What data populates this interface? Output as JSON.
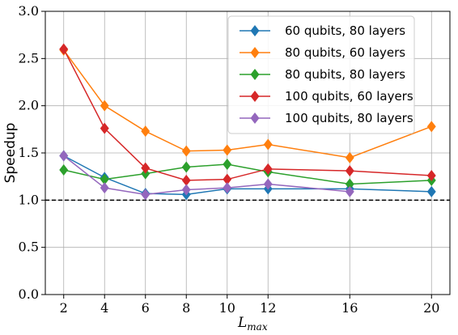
{
  "chart_data": {
    "type": "line",
    "title": "",
    "xlabel": "L",
    "xlabel_sub": "max",
    "ylabel": "Speedup",
    "xlim": [
      1.1,
      20.9
    ],
    "ylim": [
      0.0,
      3.0
    ],
    "x_ticks": [
      2,
      4,
      6,
      8,
      10,
      12,
      16,
      20
    ],
    "x_tick_labels": [
      "2",
      "4",
      "6",
      "8",
      "10",
      "12",
      "16",
      "20"
    ],
    "y_ticks": [
      0.0,
      0.5,
      1.0,
      1.5,
      2.0,
      2.5,
      3.0
    ],
    "y_tick_labels": [
      "0.0",
      "0.5",
      "1.0",
      "1.5",
      "2.0",
      "2.5",
      "3.0"
    ],
    "grid": true,
    "legend_position": "top-right",
    "reference_line": {
      "y": 1.0,
      "style": "dashed",
      "color": "#000000"
    },
    "x": [
      2,
      4,
      6,
      8,
      10,
      12,
      16,
      20
    ],
    "series": [
      {
        "name": "60 qubits, 80 layers",
        "color": "#1f77b4",
        "marker": "diamond",
        "values": [
          1.47,
          1.24,
          1.07,
          1.06,
          1.12,
          1.12,
          1.12,
          1.09
        ]
      },
      {
        "name": "80 qubits, 60 layers",
        "color": "#ff7f0e",
        "marker": "diamond",
        "values": [
          2.59,
          2.0,
          1.73,
          1.52,
          1.53,
          1.59,
          1.45,
          1.78
        ]
      },
      {
        "name": "80 qubits, 80 layers",
        "color": "#2ca02c",
        "marker": "diamond",
        "values": [
          1.32,
          1.22,
          1.28,
          1.35,
          1.38,
          1.3,
          1.17,
          1.21
        ]
      },
      {
        "name": "100 qubits, 60 layers",
        "color": "#d62728",
        "marker": "diamond",
        "values": [
          2.6,
          1.76,
          1.34,
          1.21,
          1.22,
          1.33,
          1.31,
          1.26
        ]
      },
      {
        "name": "100 qubits, 80 layers",
        "color": "#9467bd",
        "marker": "diamond",
        "values": [
          1.47,
          1.13,
          1.06,
          1.11,
          1.13,
          1.17,
          1.09,
          null
        ]
      }
    ]
  }
}
